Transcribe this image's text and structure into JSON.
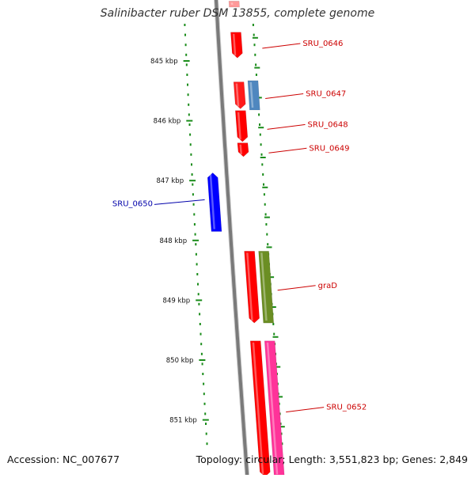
{
  "title": "Salinibacter ruber DSM 13855, complete genome",
  "accession": "Accession: NC_007677",
  "topology": "Topology: circular; Length: 3,551,823 bp; Genes: 2,849",
  "kbp_ticks": [
    {
      "label": "845 kbp",
      "kbp": 845
    },
    {
      "label": "846 kbp",
      "kbp": 846
    },
    {
      "label": "847 kbp",
      "kbp": 847
    },
    {
      "label": "848 kbp",
      "kbp": 848
    },
    {
      "label": "849 kbp",
      "kbp": 849
    },
    {
      "label": "850 kbp",
      "kbp": 850
    },
    {
      "label": "851 kbp",
      "kbp": 851
    }
  ],
  "genes": [
    {
      "label": "SRU_0646",
      "color": "#ff0000",
      "start_kbp": 844.52,
      "end_kbp": 844.95,
      "strand": "forward",
      "lane": 1,
      "label_color": "#cc0000"
    },
    {
      "label": "",
      "color": "#ff1a1a",
      "start_kbp": 845.35,
      "end_kbp": 845.8,
      "strand": "forward",
      "lane": 1,
      "label_color": "#cc0000"
    },
    {
      "label": "SRU_0647",
      "color": "#4f87bf",
      "start_kbp": 845.33,
      "end_kbp": 845.82,
      "strand": "none",
      "lane": 2,
      "label_color": "#cc0000"
    },
    {
      "label": "SRU_0648",
      "color": "#ff0000",
      "start_kbp": 845.83,
      "end_kbp": 846.35,
      "strand": "forward",
      "lane": 1,
      "label_color": "#cc0000"
    },
    {
      "label": "SRU_0649",
      "color": "#ff0000",
      "start_kbp": 846.37,
      "end_kbp": 846.6,
      "strand": "forward",
      "lane": 1,
      "label_color": "#cc0000"
    },
    {
      "label": "SRU_0650",
      "color": "#0000ff",
      "start_kbp": 846.87,
      "end_kbp": 847.85,
      "strand": "reverse",
      "lane": -1,
      "label_color": "#0000aa"
    },
    {
      "label": "",
      "color": "#ff0000",
      "start_kbp": 848.18,
      "end_kbp": 849.38,
      "strand": "forward",
      "lane": 1,
      "label_color": "#cc0000"
    },
    {
      "label": "graD",
      "color": "#6b8e23",
      "start_kbp": 848.18,
      "end_kbp": 849.38,
      "strand": "none",
      "lane": 2,
      "label_color": "#cc0000"
    },
    {
      "label": "",
      "color": "#ff0000",
      "start_kbp": 849.68,
      "end_kbp": 851.95,
      "strand": "forward",
      "lane": 1,
      "label_color": "#cc0000"
    },
    {
      "label": "SRU_0652",
      "color": "#ff3399",
      "start_kbp": 849.68,
      "end_kbp": 851.95,
      "strand": "none",
      "lane": 2,
      "label_color": "#cc0000"
    },
    {
      "label": "",
      "color": "#ff9999",
      "start_kbp": 844.0,
      "end_kbp": 844.1,
      "strand": "none",
      "lane": 1,
      "label_color": "#cc0000"
    }
  ]
}
